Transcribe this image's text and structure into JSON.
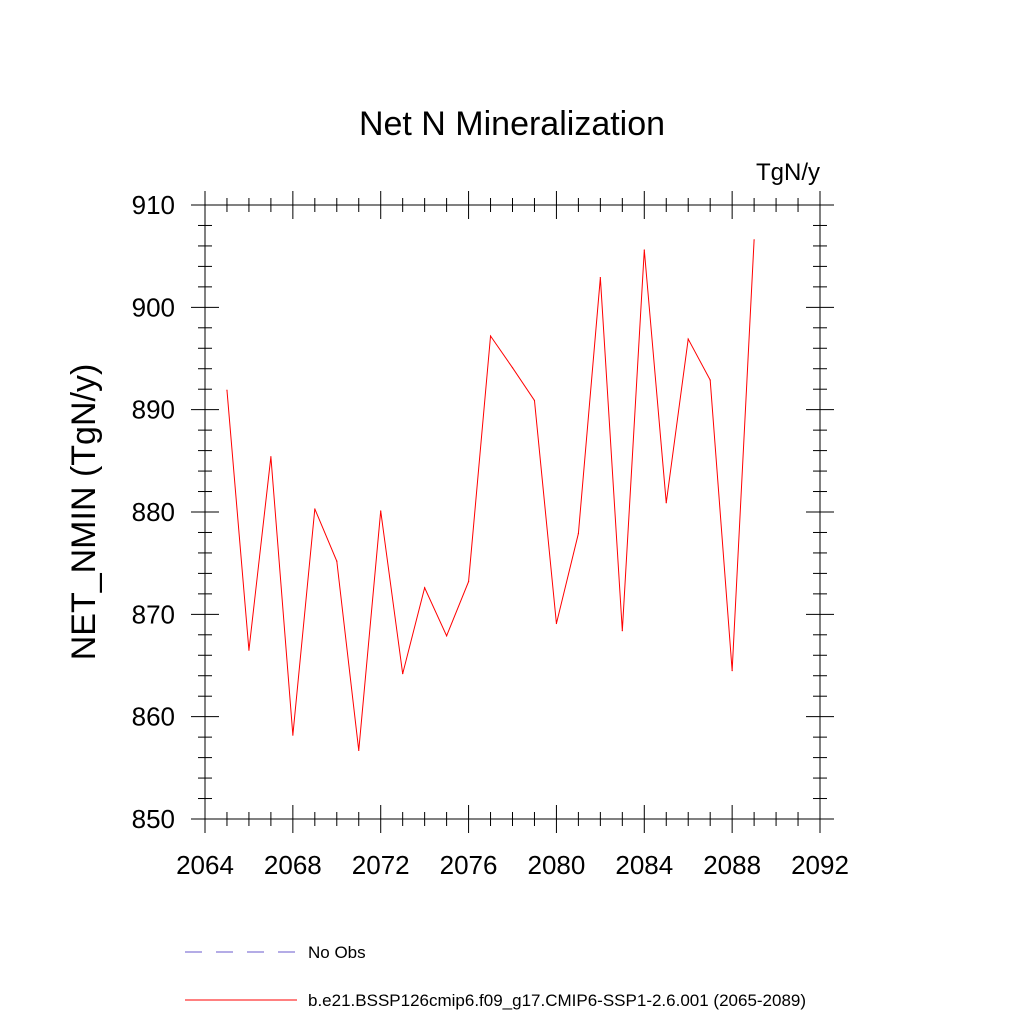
{
  "chart_data": {
    "type": "line",
    "title": "Net N Mineralization",
    "units_label": "TgN/y",
    "ylabel": "NET_NMIN  (TgN/y)",
    "xlabel": "",
    "xlim": [
      2064,
      2092
    ],
    "ylim": [
      850,
      910
    ],
    "x_ticks": [
      2064,
      2068,
      2072,
      2076,
      2080,
      2084,
      2088,
      2092
    ],
    "y_ticks": [
      850,
      860,
      870,
      880,
      890,
      900,
      910
    ],
    "x_minor_step": 1,
    "y_minor_step": 2,
    "grid": false,
    "series": [
      {
        "name": "b.e21.BSSP126cmip6.f09_g17.CMIP6-SSP1-2.6.001 (2065-2089)",
        "color": "#ff0000",
        "x": [
          2065,
          2066,
          2067,
          2068,
          2069,
          2070,
          2071,
          2072,
          2073,
          2074,
          2075,
          2076,
          2077,
          2078,
          2079,
          2080,
          2081,
          2082,
          2083,
          2084,
          2085,
          2086,
          2087,
          2088,
          2089
        ],
        "values": [
          891.9,
          866.5,
          885.4,
          858.2,
          880.3,
          875.2,
          856.7,
          880.1,
          864.2,
          872.6,
          867.9,
          873.2,
          897.2,
          894.1,
          890.9,
          869.1,
          877.9,
          902.9,
          868.4,
          905.6,
          880.9,
          896.9,
          892.9,
          864.5,
          906.6
        ]
      }
    ],
    "legend": {
      "placement": "bottom-left",
      "entries": [
        {
          "label": "No Obs",
          "color": "#6a5acd",
          "style": "dashed"
        },
        {
          "label": "b.e21.BSSP126cmip6.f09_g17.CMIP6-SSP1-2.6.001 (2065-2089)",
          "color": "#ff0000",
          "style": "solid"
        }
      ]
    }
  }
}
